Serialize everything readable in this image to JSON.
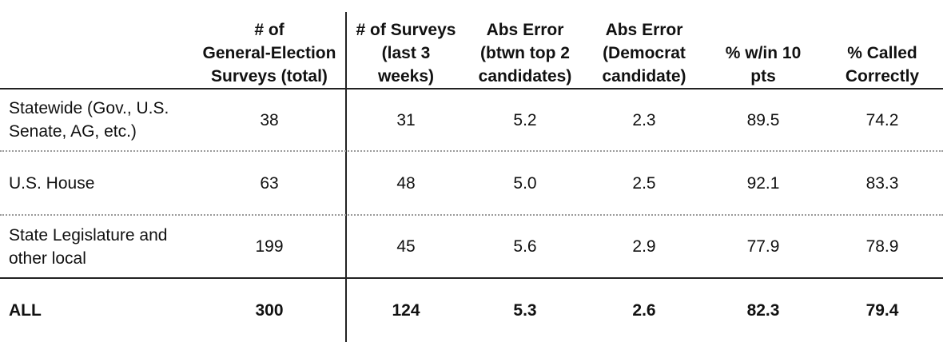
{
  "table": {
    "headers": [
      "# of\nGeneral-Election\nSurveys (total)",
      "# of Surveys\n(last 3\nweeks)",
      "Abs Error\n(btwn top 2\ncandidates)",
      "Abs Error\n(Democrat\ncandidate)",
      "% w/in 10\npts",
      "% Called\nCorrectly"
    ],
    "rows": [
      {
        "label": "Statewide (Gov., U.S.\nSenate, AG, etc.)",
        "values": [
          "38",
          "31",
          "5.2",
          "2.3",
          "89.5",
          "74.2"
        ]
      },
      {
        "label": "U.S. House",
        "values": [
          "63",
          "48",
          "5.0",
          "2.5",
          "92.1",
          "83.3"
        ]
      },
      {
        "label": "State Legislature and\nother local",
        "values": [
          "199",
          "45",
          "5.6",
          "2.9",
          "77.9",
          "78.9"
        ]
      }
    ],
    "total": {
      "label": "ALL",
      "values": [
        "300",
        "124",
        "5.3",
        "2.6",
        "82.3",
        "79.4"
      ]
    }
  }
}
